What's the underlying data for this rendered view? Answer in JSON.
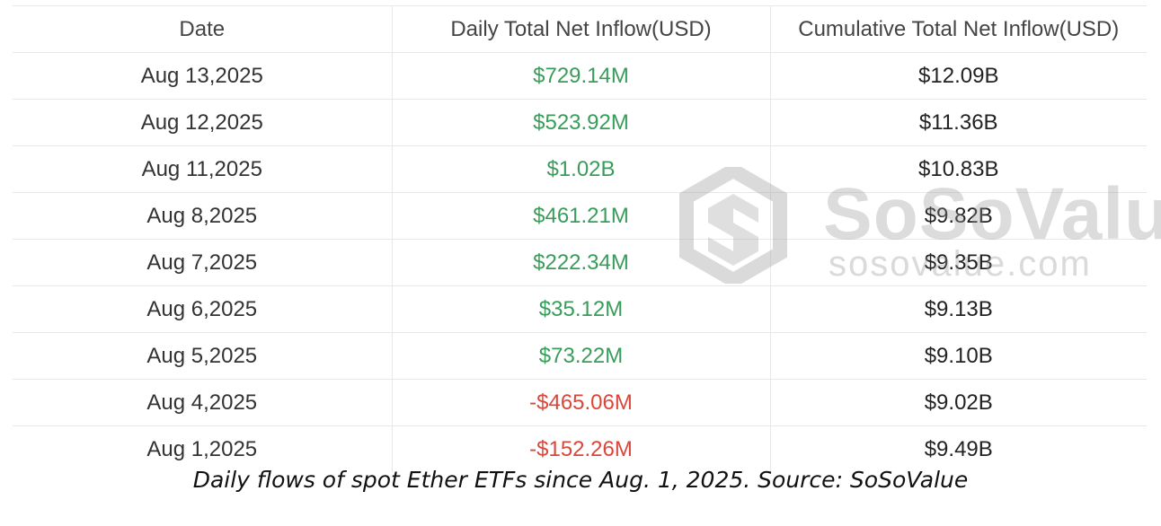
{
  "chart_data": {
    "type": "table",
    "columns": [
      "Date",
      "Daily Total Net Inflow(USD)",
      "Cumulative Total Net Inflow(USD)"
    ],
    "rows": [
      {
        "date": "Aug 13,2025",
        "daily": "$729.14M",
        "cumulative": "$12.09B",
        "sign": "positive"
      },
      {
        "date": "Aug 12,2025",
        "daily": "$523.92M",
        "cumulative": "$11.36B",
        "sign": "positive"
      },
      {
        "date": "Aug 11,2025",
        "daily": "$1.02B",
        "cumulative": "$10.83B",
        "sign": "positive"
      },
      {
        "date": "Aug 8,2025",
        "daily": "$461.21M",
        "cumulative": "$9.82B",
        "sign": "positive"
      },
      {
        "date": "Aug 7,2025",
        "daily": "$222.34M",
        "cumulative": "$9.35B",
        "sign": "positive"
      },
      {
        "date": "Aug 6,2025",
        "daily": "$35.12M",
        "cumulative": "$9.13B",
        "sign": "positive"
      },
      {
        "date": "Aug 5,2025",
        "daily": "$73.22M",
        "cumulative": "$9.10B",
        "sign": "positive"
      },
      {
        "date": "Aug 4,2025",
        "daily": "-$465.06M",
        "cumulative": "$9.02B",
        "sign": "negative"
      },
      {
        "date": "Aug 1,2025",
        "daily": "-$152.26M",
        "cumulative": "$9.49B",
        "sign": "negative"
      }
    ]
  },
  "caption": "Daily flows of spot Ether ETFs since Aug. 1, 2025. Source: SoSoValue",
  "watermark": {
    "name": "SoSoValue",
    "url": "sosovalue.com"
  },
  "colors": {
    "positive": "#3a9c5b",
    "negative": "#d9473b",
    "grid": "#e8e8e8"
  }
}
